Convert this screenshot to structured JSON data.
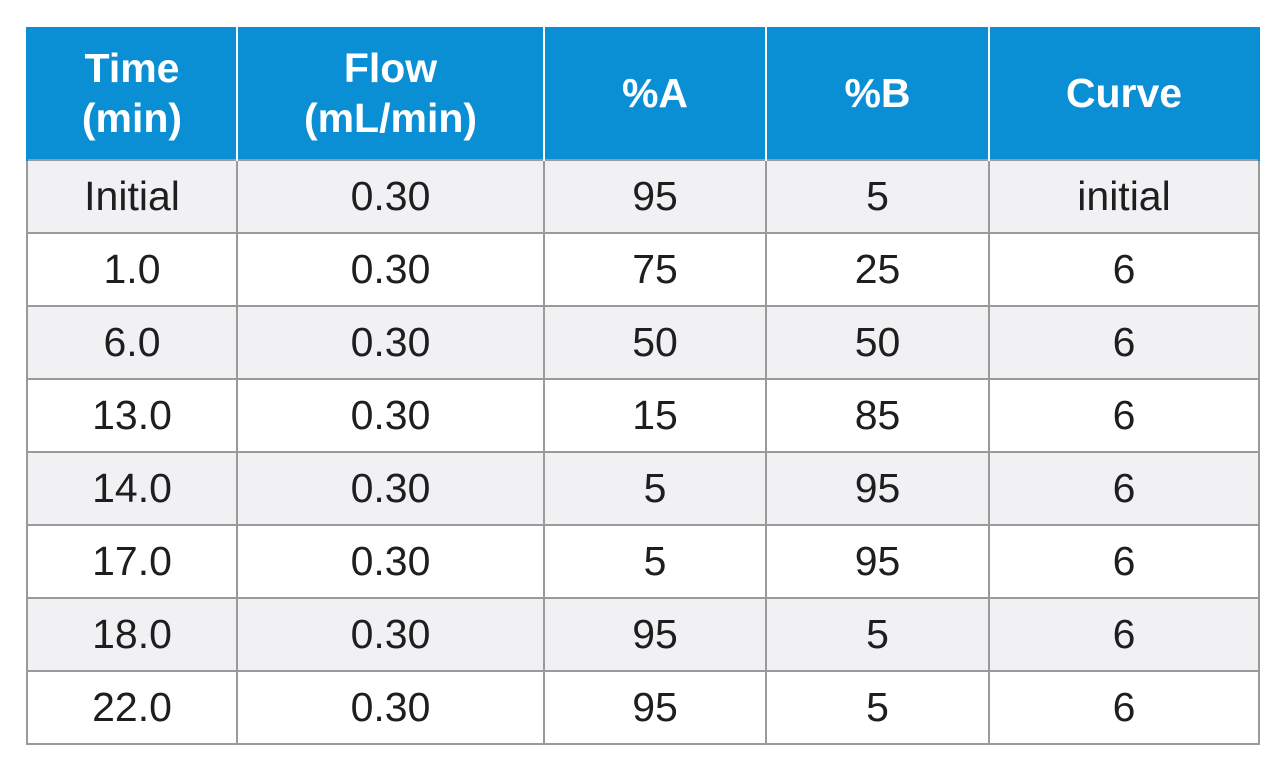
{
  "table": {
    "header_color": "#0a8fd4",
    "columns": [
      "Time\n(min)",
      "Flow\n(mL/min)",
      "%A",
      "%B",
      "Curve"
    ],
    "rows": [
      [
        "Initial",
        "0.30",
        "95",
        "5",
        "initial"
      ],
      [
        "1.0",
        "0.30",
        "75",
        "25",
        "6"
      ],
      [
        "6.0",
        "0.30",
        "50",
        "50",
        "6"
      ],
      [
        "13.0",
        "0.30",
        "15",
        "85",
        "6"
      ],
      [
        "14.0",
        "0.30",
        "5",
        "95",
        "6"
      ],
      [
        "17.0",
        "0.30",
        "5",
        "95",
        "6"
      ],
      [
        "18.0",
        "0.30",
        "95",
        "5",
        "6"
      ],
      [
        "22.0",
        "0.30",
        "95",
        "5",
        "6"
      ]
    ]
  }
}
